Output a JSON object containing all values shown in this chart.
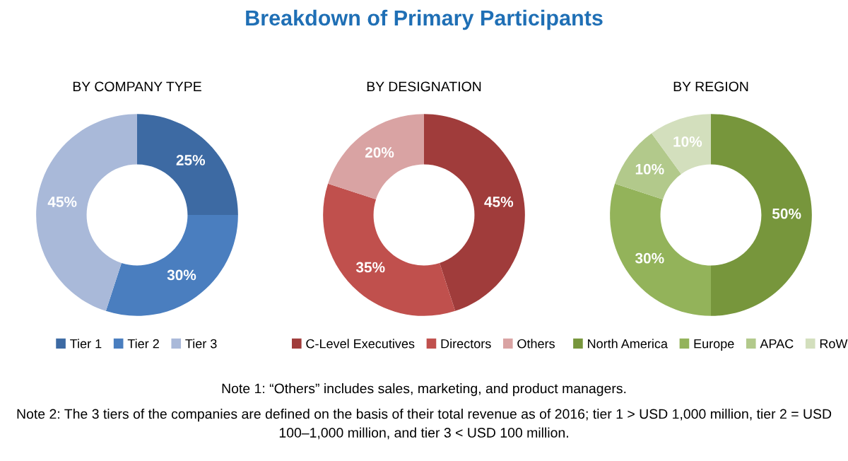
{
  "chart_data": [
    {
      "type": "other",
      "title": "Breakdown of Primary Participants",
      "annotations": [
        "Note 1: “Others” includes sales, marketing, and product managers.",
        "Note 2: The 3 tiers of the companies are defined on the basis of their total revenue as of 2016; tier 1 > USD 1,000 million, tier 2 = USD 100–1,000 million, and tier 3 < USD 100 million."
      ]
    },
    {
      "type": "donut",
      "title": "BY COMPANY TYPE",
      "categories": [
        "Tier 1",
        "Tier 2",
        "Tier 3"
      ],
      "values": [
        25,
        30,
        45
      ],
      "colors": [
        "#3d6aa3",
        "#4a7ebf",
        "#a9b9d9"
      ],
      "value_labels": [
        "25%",
        "30%",
        "45%"
      ],
      "legend": "bottom"
    },
    {
      "type": "donut",
      "title": "BY DESIGNATION",
      "categories": [
        "C-Level Executives",
        "Directors",
        "Others"
      ],
      "values": [
        45,
        35,
        20
      ],
      "colors": [
        "#a03c3b",
        "#c0504d",
        "#d9a3a3"
      ],
      "value_labels": [
        "45%",
        "35%",
        "20%"
      ],
      "legend": "bottom"
    },
    {
      "type": "donut",
      "title": "BY REGION",
      "categories": [
        "North America",
        "Europe",
        "APAC",
        "RoW"
      ],
      "values": [
        50,
        30,
        10,
        10
      ],
      "colors": [
        "#77963c",
        "#93b35a",
        "#b2c98b",
        "#d3dfbd"
      ],
      "value_labels": [
        "50%",
        "30%",
        "10%",
        "10%"
      ],
      "legend": "bottom"
    }
  ]
}
